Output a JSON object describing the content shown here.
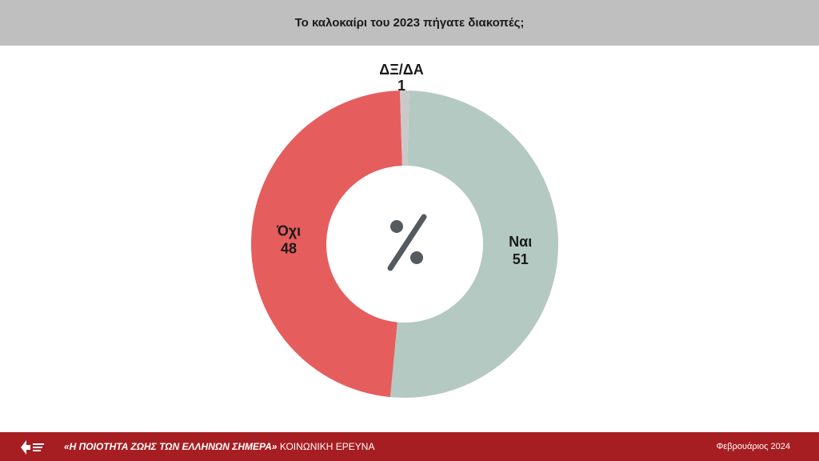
{
  "header": {
    "title": "Το καλοκαίρι του 2023 πήγατε διακοπές;"
  },
  "chart_data": {
    "type": "pie",
    "variant": "donut",
    "center_label": "%",
    "slices": [
      {
        "label": "Ναι",
        "value": 51,
        "color": "#b4c9c1"
      },
      {
        "label": "Όχι",
        "value": 48,
        "color": "#e65d5e"
      },
      {
        "label": "ΔΞ/ΔΑ",
        "value": 1,
        "color": "#c9c9c9"
      }
    ]
  },
  "footer": {
    "survey_title": "«Η ΠΟΙΟΤΗΤΑ ΖΩΗΣ ΤΩΝ ΕΛΛΗΝΩΝ ΣΗΜΕΡΑ»",
    "survey_subtitle": "ΚΟΙΝΩΝΙΚΗ ΕΡΕΥΝΑ",
    "date": "Φεβρουάριος 2024",
    "colors": {
      "bar": "#a71e22",
      "text": "#ffffff"
    },
    "logo_icon": "organization-logo-icon"
  }
}
